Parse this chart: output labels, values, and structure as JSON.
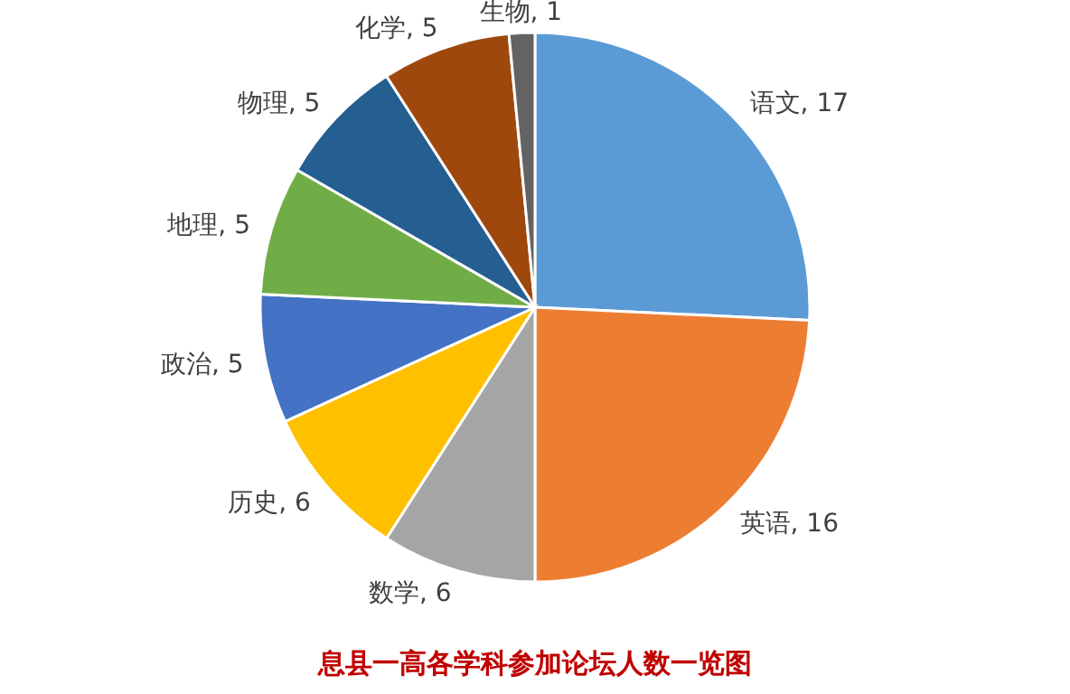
{
  "chart_data": {
    "type": "pie",
    "title": "息县一高各学科参加论坛人数一览图",
    "categories": [
      "语文",
      "英语",
      "数学",
      "历史",
      "政治",
      "地理",
      "物理",
      "化学",
      "生物"
    ],
    "values": [
      17,
      16,
      6,
      6,
      5,
      5,
      5,
      5,
      1
    ],
    "value_labels": [
      ", 17",
      ", 16",
      ", 6",
      ", 6",
      ", 5",
      ", 5",
      ", 5",
      ", 5",
      ", 1"
    ],
    "colors": [
      "#5b9bd5",
      "#ed7d31",
      "#a5a5a5",
      "#ffc000",
      "#4472c4",
      "#70ad47",
      "#255e91",
      "#9e480e",
      "#636363"
    ],
    "legend": false
  }
}
